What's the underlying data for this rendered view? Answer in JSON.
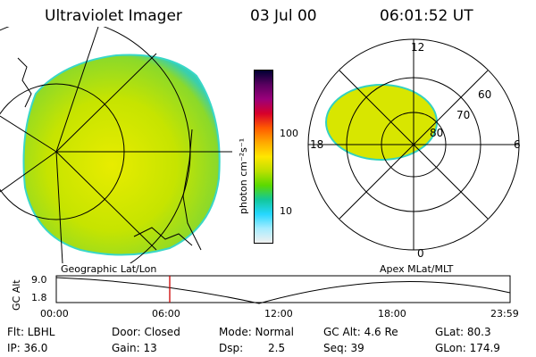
{
  "header": {
    "title": "Ultraviolet Imager",
    "date": "03 Jul 00",
    "time": "06:01:52 UT"
  },
  "colorbar": {
    "unit_label": "photon cm⁻²s⁻¹",
    "ticks": [
      "100",
      "10"
    ],
    "colors": [
      "#000033",
      "#5a0060",
      "#9b007a",
      "#d8002a",
      "#ff5a00",
      "#ffa800",
      "#ffe600",
      "#bde000",
      "#5bd900",
      "#12c79b",
      "#25d7ff",
      "#a6ecff",
      "#f0f0f0"
    ]
  },
  "polar_plot": {
    "labels": {
      "top": "12",
      "right": "6",
      "bottom": "0",
      "left": "18"
    },
    "lat_labels": [
      "60",
      "70",
      "80"
    ]
  },
  "map_labels": {
    "left": "Geographic Lat/Lon",
    "right": "Apex MLat/MLT"
  },
  "altitude_strip": {
    "axis_label": "GC Alt",
    "y_ticks": [
      "9.0",
      "1.8"
    ],
    "x_ticks": [
      "00:00",
      "06:00",
      "12:00",
      "18:00",
      "23:59"
    ],
    "current_marker_time": "06:01:52",
    "marker_color": "#cc0000"
  },
  "info": {
    "flt": "Flt: LBHL",
    "ip": "IP: 36.0",
    "door": "Door: Closed",
    "gain": "Gain: 13",
    "mode": "Mode: Normal",
    "dsp_label": "Dsp:",
    "dsp_value": "2.5",
    "gcalt": "GC Alt: 4.6 Re",
    "seq": "Seq: 39",
    "glat": "GLat: 80.3",
    "glon": "GLon: 174.9"
  }
}
